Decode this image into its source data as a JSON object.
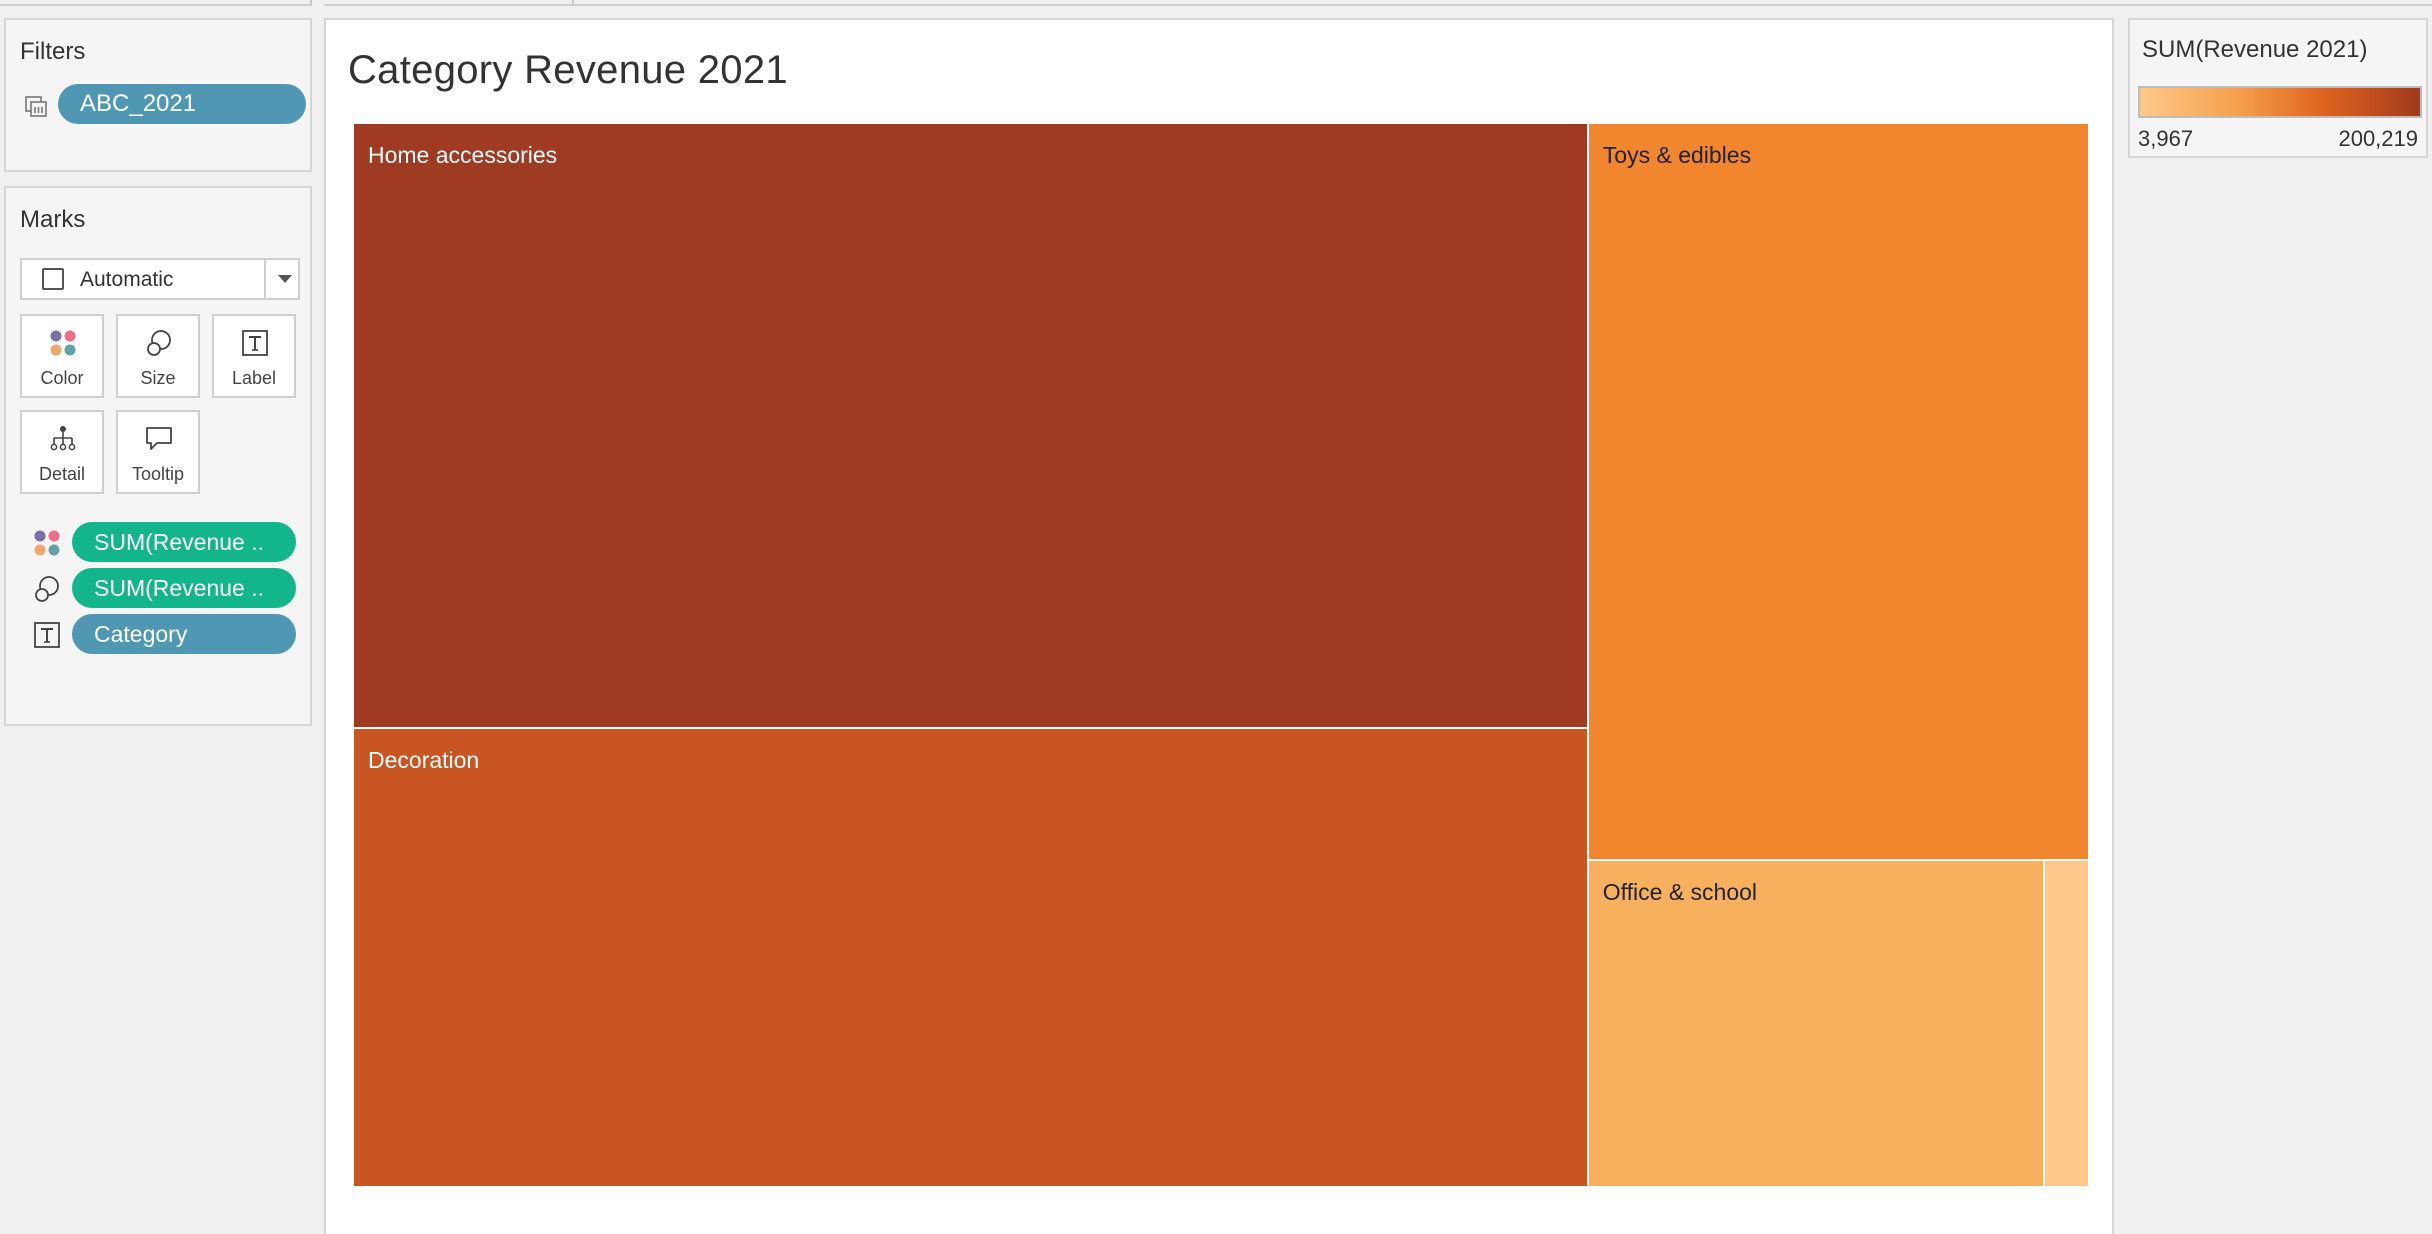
{
  "filters": {
    "title": "Filters",
    "pill": "ABC_2021"
  },
  "marks": {
    "title": "Marks",
    "mark_type": "Automatic",
    "buttons": [
      {
        "label": "Color",
        "icon": "color-dots-icon"
      },
      {
        "label": "Size",
        "icon": "size-circles-icon"
      },
      {
        "label": "Label",
        "icon": "label-t-icon"
      },
      {
        "label": "Detail",
        "icon": "detail-hierarchy-icon"
      },
      {
        "label": "Tooltip",
        "icon": "tooltip-bubble-icon"
      }
    ],
    "shelf": [
      {
        "icon": "color-dots-icon",
        "pill": "SUM(Revenue ..",
        "color": "#13b58a"
      },
      {
        "icon": "size-circles-icon",
        "pill": "SUM(Revenue ..",
        "color": "#13b58a"
      },
      {
        "icon": "label-t-icon",
        "pill": "Category",
        "color": "#4f97b2"
      }
    ]
  },
  "view": {
    "title": "Category Revenue 2021"
  },
  "legend": {
    "title": "SUM(Revenue 2021)",
    "min_label": "3,967",
    "max_label": "200,219",
    "color_min": "#fdc98a",
    "color_max": "#a2391e"
  },
  "chart_data": {
    "type": "treemap",
    "title": "Category Revenue 2021",
    "size_measure": "SUM(Revenue 2021)",
    "color_measure": "SUM(Revenue 2021)",
    "color_range": [
      3967,
      200219
    ],
    "tiles": [
      {
        "label": "Home accessories",
        "value": 200219,
        "color": "#9e3b22",
        "text_color": "#ffffff"
      },
      {
        "label": "Decoration",
        "value": 152000,
        "color": "#c85522",
        "text_color": "#ffffff"
      },
      {
        "label": "Toys & edibles",
        "value": 99000,
        "color": "#f2862e",
        "text_color": "#222222"
      },
      {
        "label": "Office & school",
        "value": 40000,
        "color": "#f7b05e",
        "text_color": "#222222"
      },
      {
        "label": "",
        "value": 3967,
        "color": "#fdc98a",
        "text_color": "#222222"
      }
    ]
  }
}
